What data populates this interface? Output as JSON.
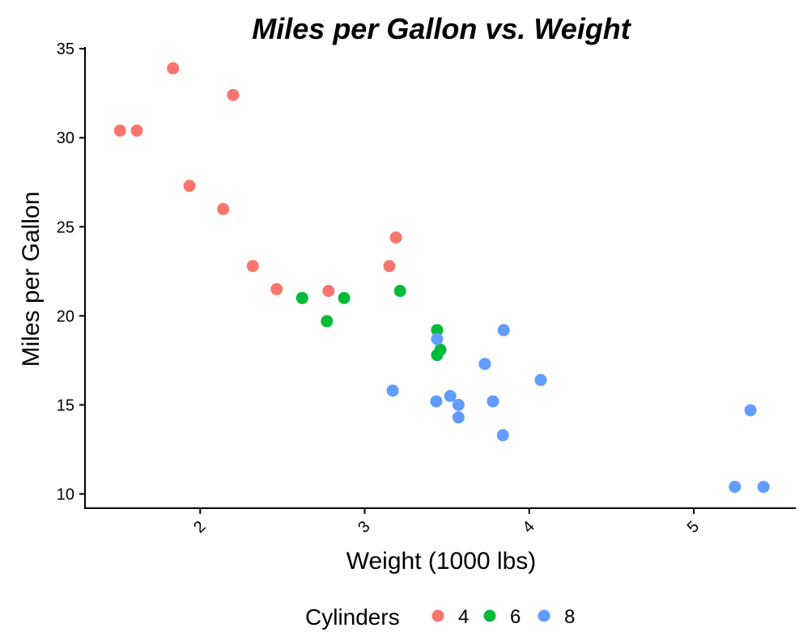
{
  "chart_data": {
    "type": "scatter",
    "title": "Miles per Gallon vs. Weight",
    "xlabel": "Weight (1000 lbs)",
    "ylabel": "Miles per Gallon",
    "xlim": [
      1.3,
      5.62
    ],
    "ylim": [
      9.2,
      35.1
    ],
    "x_ticks": [
      2,
      3,
      4,
      5
    ],
    "y_ticks": [
      10,
      15,
      20,
      25,
      30,
      35
    ],
    "grid": false,
    "legend": {
      "title": "Cylinders",
      "position": "bottom",
      "entries": [
        "4",
        "6",
        "8"
      ]
    },
    "series": [
      {
        "name": "4",
        "color": "#F8766D",
        "points": [
          {
            "x": 1.513,
            "y": 30.4
          },
          {
            "x": 1.615,
            "y": 30.4
          },
          {
            "x": 1.835,
            "y": 33.9
          },
          {
            "x": 1.935,
            "y": 27.3
          },
          {
            "x": 2.14,
            "y": 26.0
          },
          {
            "x": 2.2,
            "y": 32.4
          },
          {
            "x": 2.32,
            "y": 22.8
          },
          {
            "x": 2.465,
            "y": 21.5
          },
          {
            "x": 2.78,
            "y": 21.4
          },
          {
            "x": 3.15,
            "y": 22.8
          },
          {
            "x": 3.19,
            "y": 24.4
          }
        ]
      },
      {
        "name": "6",
        "color": "#00BA38",
        "points": [
          {
            "x": 2.62,
            "y": 21.0
          },
          {
            "x": 2.77,
            "y": 19.7
          },
          {
            "x": 2.875,
            "y": 21.0
          },
          {
            "x": 3.215,
            "y": 21.4
          },
          {
            "x": 3.44,
            "y": 19.2
          },
          {
            "x": 3.44,
            "y": 17.8
          },
          {
            "x": 3.46,
            "y": 18.1
          }
        ]
      },
      {
        "name": "8",
        "color": "#619CFF",
        "points": [
          {
            "x": 3.17,
            "y": 15.8
          },
          {
            "x": 3.435,
            "y": 15.2
          },
          {
            "x": 3.44,
            "y": 18.7
          },
          {
            "x": 3.52,
            "y": 15.5
          },
          {
            "x": 3.57,
            "y": 15.0
          },
          {
            "x": 3.57,
            "y": 14.3
          },
          {
            "x": 3.73,
            "y": 17.3
          },
          {
            "x": 3.78,
            "y": 15.2
          },
          {
            "x": 3.84,
            "y": 13.3
          },
          {
            "x": 3.845,
            "y": 19.2
          },
          {
            "x": 4.07,
            "y": 16.4
          },
          {
            "x": 5.25,
            "y": 10.4
          },
          {
            "x": 5.345,
            "y": 14.7
          },
          {
            "x": 5.424,
            "y": 10.4
          }
        ]
      }
    ]
  }
}
